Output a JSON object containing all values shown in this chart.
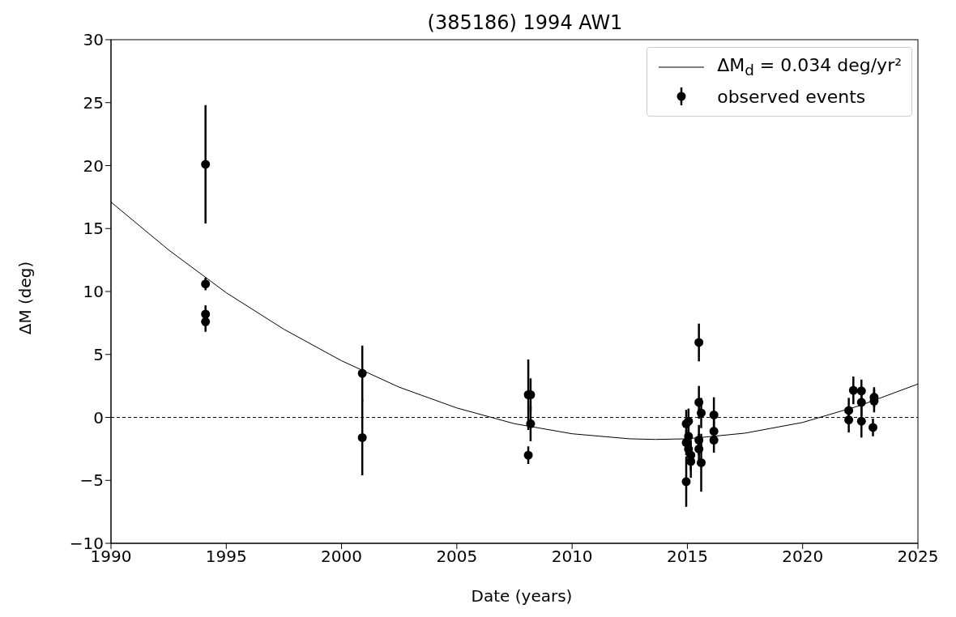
{
  "chart_data": {
    "type": "scatter",
    "title": "(385186) 1994 AW1",
    "xlabel": "Date (years)",
    "ylabel": "ΔM (deg)",
    "xlim": [
      1990,
      2025
    ],
    "xticks": [
      1990,
      1995,
      2000,
      2005,
      2010,
      2015,
      2020,
      2025
    ],
    "ylim": [
      -10,
      30
    ],
    "yticks": [
      -10,
      -5,
      0,
      5,
      10,
      15,
      20,
      25,
      30
    ],
    "legend": "top right",
    "ref_lines": [
      {
        "axis": "y",
        "value": 0,
        "color": "#000000",
        "line_style": "dashed"
      }
    ],
    "series": [
      {
        "type": "line",
        "name": "ΔM$_{d}$ = 0.034 deg/yr²",
        "color": "#000000",
        "marker": "none",
        "line_style": "solid",
        "x": [
          1990,
          1992.5,
          1995,
          1997.5,
          2000,
          2002.5,
          2005,
          2007.5,
          2010,
          2012.5,
          2013.6,
          2015,
          2017.5,
          2020,
          2022.5,
          2025
        ],
        "values": [
          17.1,
          13.3,
          9.9,
          7.0,
          4.5,
          2.4,
          0.75,
          -0.5,
          -1.3,
          -1.7,
          -1.75,
          -1.7,
          -1.25,
          -0.4,
          0.95,
          2.65
        ]
      },
      {
        "name": "observed events",
        "color": "#000000",
        "marker": "circle",
        "x": [
          1994.1,
          1994.1,
          1994.1,
          1994.1,
          2000.9,
          2000.9,
          2008.1,
          2008.2,
          2008.2,
          2008.1,
          2014.95,
          2014.95,
          2014.95,
          2015.05,
          2015.05,
          2015.05,
          2015.15,
          2015.15,
          2015.5,
          2015.5,
          2015.5,
          2015.5,
          2015.6,
          2015.6,
          2016.15,
          2016.15,
          2016.15,
          2022.0,
          2022.0,
          2022.2,
          2022.55,
          2022.55,
          2022.55,
          2023.05,
          2023.1,
          2023.1
        ],
        "values": [
          20.1,
          10.6,
          8.2,
          7.6,
          3.5,
          -1.6,
          1.8,
          1.8,
          -0.5,
          -3.0,
          -0.5,
          -2.0,
          -5.1,
          -0.3,
          -1.5,
          -2.5,
          -3.0,
          -3.5,
          5.95,
          1.2,
          -1.8,
          -2.5,
          0.35,
          -3.6,
          0.2,
          -1.1,
          -1.8,
          0.55,
          -0.2,
          2.15,
          2.1,
          1.2,
          -0.3,
          -0.8,
          1.3,
          1.6
        ],
        "errors": [
          4.7,
          0.5,
          0.7,
          0.8,
          2.2,
          3.0,
          2.8,
          1.3,
          1.4,
          0.7,
          1.1,
          1.0,
          2.0,
          1.0,
          1.2,
          1.0,
          1.2,
          1.3,
          1.5,
          1.3,
          1.2,
          1.2,
          1.2,
          2.3,
          1.4,
          1.0,
          1.0,
          1.0,
          1.0,
          1.1,
          0.9,
          1.1,
          1.3,
          0.7,
          0.9,
          0.8
        ]
      }
    ]
  }
}
